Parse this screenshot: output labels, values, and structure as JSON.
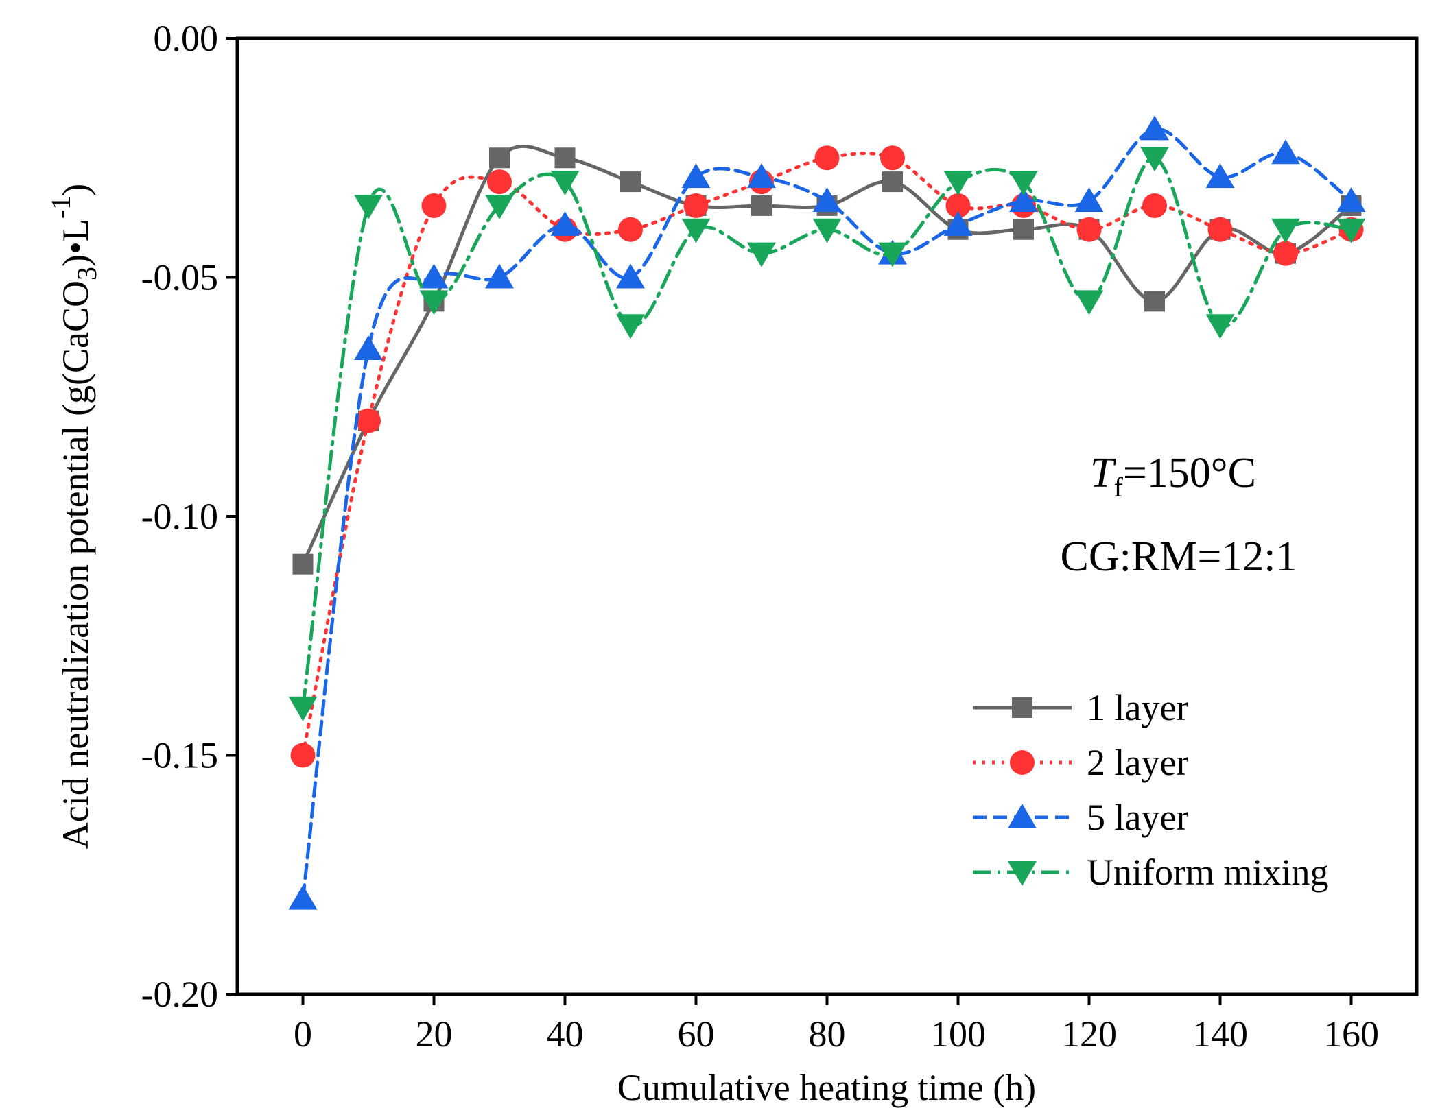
{
  "chart_data": {
    "type": "line",
    "xlabel": "Cumulative heating time (h)",
    "ylabel": {
      "pre": "Acid neutralization potential (g(CaCO",
      "sub": "3",
      "mid": ")•L",
      "sup": "-1",
      "post": ")"
    },
    "xlim": [
      -10,
      170
    ],
    "ylim": [
      -0.2,
      0.0
    ],
    "x_ticks": [
      0,
      20,
      40,
      60,
      80,
      100,
      120,
      140,
      160
    ],
    "x_tick_labels": [
      "0",
      "20",
      "40",
      "60",
      "80",
      "100",
      "120",
      "140",
      "160"
    ],
    "y_ticks": [
      0.0,
      -0.05,
      -0.1,
      -0.15,
      -0.2
    ],
    "y_tick_labels": [
      "0.00",
      "-0.05",
      "-0.10",
      "-0.15",
      "-0.20"
    ],
    "x": [
      0,
      10,
      20,
      30,
      40,
      50,
      60,
      70,
      80,
      90,
      100,
      110,
      120,
      130,
      140,
      150,
      160
    ],
    "series": [
      {
        "name": "1 layer",
        "color": "#666666",
        "dash": "solid",
        "marker": "square",
        "values": [
          -0.11,
          -0.08,
          -0.055,
          -0.025,
          -0.025,
          -0.03,
          -0.035,
          -0.035,
          -0.035,
          -0.03,
          -0.04,
          -0.04,
          -0.04,
          -0.055,
          -0.04,
          -0.045,
          -0.035
        ]
      },
      {
        "name": "2 layer",
        "color": "#ff3333",
        "dash": "dotted",
        "marker": "circle",
        "values": [
          -0.15,
          -0.08,
          -0.035,
          -0.03,
          -0.04,
          -0.04,
          -0.035,
          -0.03,
          -0.025,
          -0.025,
          -0.035,
          -0.035,
          -0.04,
          -0.035,
          -0.04,
          -0.045,
          -0.04
        ]
      },
      {
        "name": "5 layer",
        "color": "#1a66e6",
        "dash": "dashed",
        "marker": "triangle-up",
        "values": [
          -0.18,
          -0.065,
          -0.05,
          -0.05,
          -0.039,
          -0.05,
          -0.029,
          -0.029,
          -0.034,
          -0.045,
          -0.039,
          -0.034,
          -0.034,
          -0.019,
          -0.029,
          -0.024,
          -0.034
        ]
      },
      {
        "name": "Uniform mixing",
        "color": "#1aa65a",
        "dash": "dash-dot",
        "marker": "triangle-down",
        "values": [
          -0.14,
          -0.035,
          -0.055,
          -0.035,
          -0.03,
          -0.06,
          -0.04,
          -0.045,
          -0.04,
          -0.045,
          -0.03,
          -0.03,
          -0.055,
          -0.025,
          -0.06,
          -0.04,
          -0.04
        ]
      }
    ],
    "annotations": [
      {
        "main": "T",
        "sub": "f",
        "rest": "=150°C"
      },
      {
        "text": "CG:RM=12:1"
      }
    ],
    "legend_position": "bottom-right",
    "grid": false
  }
}
